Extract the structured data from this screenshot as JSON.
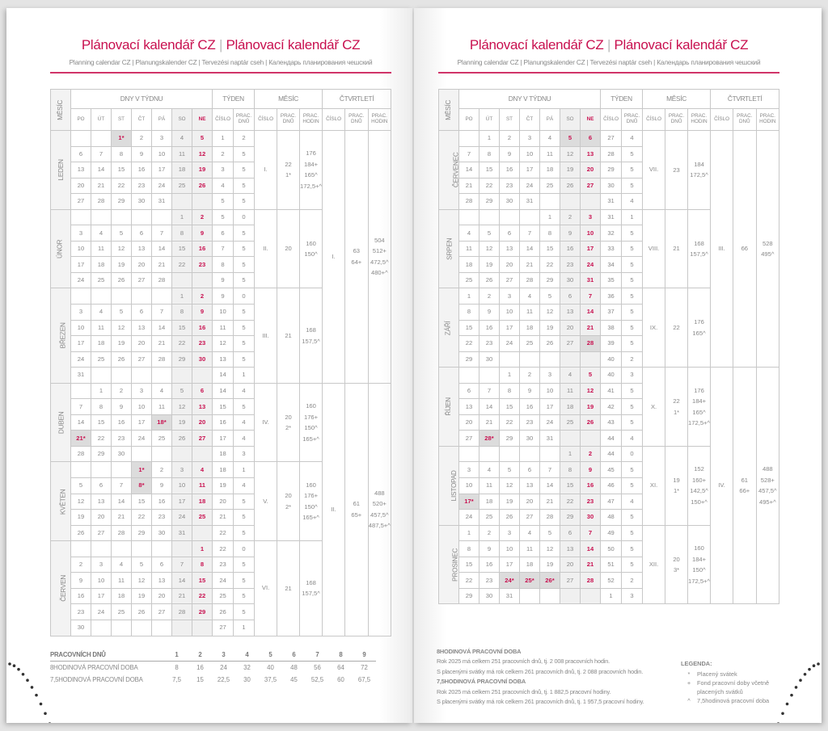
{
  "title": {
    "main": "Plánovací kalendář CZ",
    "sep": "|",
    "subtitle": "Planning calendar CZ | Planungskalender CZ | Tervezési naptár cseh | Календарь планирования чешский"
  },
  "colors": {
    "accent": "#c8104f",
    "weekend_shade": "#f0f0f0",
    "holiday_shade": "#dcdcdc",
    "text": "#888888"
  },
  "headers": {
    "month": "MĚSÍC",
    "days_group": "DNY V TÝDNU",
    "days": [
      "PO",
      "ÚT",
      "ST",
      "ČT",
      "PÁ",
      "SO",
      "NE"
    ],
    "week_group": "TÝDEN",
    "month_group": "MĚSÍC",
    "quarter_group": "ČTVRTLETÍ",
    "number": "ČÍSLO",
    "work_days": "PRAC. DNŮ",
    "work_hours": "PRAC. HODIN"
  },
  "pages": [
    {
      "quarters": [
        {
          "number": "I.",
          "days": [
            "63",
            "64+"
          ],
          "hours": [
            "504",
            "512+",
            "472,5^",
            "480+^"
          ],
          "months": [
            {
              "name": "LEDEN",
              "number": "I.",
              "days": [
                "22",
                "1*"
              ],
              "hours": [
                "176",
                "184+",
                "165^",
                "172,5+^"
              ],
              "holidays": [],
              "rows": [
                [
                  "_ _ 1* 2 3 4 5",
                  "1",
                  "2"
                ],
                [
                  "6 7 8 9 10 11 12",
                  "2",
                  "5"
                ],
                [
                  "13 14 15 16 17 18 19",
                  "3",
                  "5"
                ],
                [
                  "20 21 22 23 24 25 26",
                  "4",
                  "5"
                ],
                [
                  "27 28 29 30 31 _ _",
                  "5",
                  "5"
                ]
              ]
            },
            {
              "name": "ÚNOR",
              "number": "II.",
              "days": [
                "20"
              ],
              "hours": [
                "160",
                "150^"
              ],
              "holidays": [],
              "rows": [
                [
                  "_ _ _ _ _ 1 2",
                  "5",
                  "0"
                ],
                [
                  "3 4 5 6 7 8 9",
                  "6",
                  "5"
                ],
                [
                  "10 11 12 13 14 15 16",
                  "7",
                  "5"
                ],
                [
                  "17 18 19 20 21 22 23",
                  "8",
                  "5"
                ],
                [
                  "24 25 26 27 28 _ _",
                  "9",
                  "5"
                ]
              ]
            },
            {
              "name": "BŘEZEN",
              "number": "III.",
              "days": [
                "21"
              ],
              "hours": [
                "168",
                "157,5^"
              ],
              "holidays": [],
              "rows": [
                [
                  "_ _ _ _ _ 1 2",
                  "9",
                  "0"
                ],
                [
                  "3 4 5 6 7 8 9",
                  "10",
                  "5"
                ],
                [
                  "10 11 12 13 14 15 16",
                  "11",
                  "5"
                ],
                [
                  "17 18 19 20 21 22 23",
                  "12",
                  "5"
                ],
                [
                  "24 25 26 27 28 29 30",
                  "13",
                  "5"
                ],
                [
                  "31 _ _ _ _ _ _",
                  "14",
                  "1"
                ]
              ]
            }
          ]
        },
        {
          "number": "II.",
          "days": [
            "61",
            "65+"
          ],
          "hours": [
            "488",
            "520+",
            "457,5^",
            "487,5+^"
          ],
          "months": [
            {
              "name": "DUBEN",
              "number": "IV.",
              "days": [
                "20",
                "2*"
              ],
              "hours": [
                "160",
                "176+",
                "150^",
                "165+^"
              ],
              "holidays": [],
              "rows": [
                [
                  "_ 1 2 3 4 5 6",
                  "14",
                  "4"
                ],
                [
                  "7 8 9 10 11 12 13",
                  "15",
                  "5"
                ],
                [
                  "14 15 16 17 18* 19 20",
                  "16",
                  "4"
                ],
                [
                  "21* 22 23 24 25 26 27",
                  "17",
                  "4"
                ],
                [
                  "28 29 30 _ _ _ _",
                  "18",
                  "3"
                ]
              ]
            },
            {
              "name": "KVĚTEN",
              "number": "V.",
              "days": [
                "20",
                "2*"
              ],
              "hours": [
                "160",
                "176+",
                "150^",
                "165+^"
              ],
              "holidays": [],
              "rows": [
                [
                  "_ _ _ 1* 2 3 4",
                  "18",
                  "1"
                ],
                [
                  "5 6 7 8* 9 10 11",
                  "19",
                  "4"
                ],
                [
                  "12 13 14 15 16 17 18",
                  "20",
                  "5"
                ],
                [
                  "19 20 21 22 23 24 25",
                  "21",
                  "5"
                ],
                [
                  "26 27 28 29 30 31 _",
                  "22",
                  "5"
                ]
              ]
            },
            {
              "name": "ČERVEN",
              "number": "VI.",
              "days": [
                "21"
              ],
              "hours": [
                "168",
                "157,5^"
              ],
              "holidays": [],
              "rows": [
                [
                  "_ _ _ _ _ _ 1",
                  "22",
                  "0"
                ],
                [
                  "2 3 4 5 6 7 8",
                  "23",
                  "5"
                ],
                [
                  "9 10 11 12 13 14 15",
                  "24",
                  "5"
                ],
                [
                  "16 17 18 19 20 21 22",
                  "25",
                  "5"
                ],
                [
                  "23 24 25 26 27 28 29",
                  "26",
                  "5"
                ],
                [
                  "30 _ _ _ _ _ _",
                  "27",
                  "1"
                ]
              ]
            }
          ]
        }
      ]
    },
    {
      "quarters": [
        {
          "number": "III.",
          "days": [
            "66"
          ],
          "hours": [
            "528",
            "495^"
          ],
          "months": [
            {
              "name": "ČERVENEC",
              "number": "VII.",
              "days": [
                "23"
              ],
              "hours": [
                "184",
                "172,5^"
              ],
              "holidays": [
                "5",
                "6"
              ],
              "rows": [
                [
                  "_ 1 2 3 4 5 6",
                  "27",
                  "4"
                ],
                [
                  "7 8 9 10 11 12 13",
                  "28",
                  "5"
                ],
                [
                  "14 15 16 17 18 19 20",
                  "29",
                  "5"
                ],
                [
                  "21 22 23 24 25 26 27",
                  "30",
                  "5"
                ],
                [
                  "28 29 30 31 _ _ _",
                  "31",
                  "4"
                ]
              ]
            },
            {
              "name": "SRPEN",
              "number": "VIII.",
              "days": [
                "21"
              ],
              "hours": [
                "168",
                "157,5^"
              ],
              "holidays": [],
              "rows": [
                [
                  "_ _ _ _ 1 2 3",
                  "31",
                  "1"
                ],
                [
                  "4 5 6 7 8 9 10",
                  "32",
                  "5"
                ],
                [
                  "11 12 13 14 15 16 17",
                  "33",
                  "5"
                ],
                [
                  "18 19 20 21 22 23 24",
                  "34",
                  "5"
                ],
                [
                  "25 26 27 28 29 30 31",
                  "35",
                  "5"
                ]
              ]
            },
            {
              "name": "ZÁŘÍ",
              "number": "IX.",
              "days": [
                "22"
              ],
              "hours": [
                "176",
                "165^"
              ],
              "holidays": [
                "28"
              ],
              "rows": [
                [
                  "1 2 3 4 5 6 7",
                  "36",
                  "5"
                ],
                [
                  "8 9 10 11 12 13 14",
                  "37",
                  "5"
                ],
                [
                  "15 16 17 18 19 20 21",
                  "38",
                  "5"
                ],
                [
                  "22 23 24 25 26 27 28",
                  "39",
                  "5"
                ],
                [
                  "29 30 _ _ _ _ _",
                  "40",
                  "2"
                ]
              ]
            }
          ]
        },
        {
          "number": "IV.",
          "days": [
            "61",
            "66+"
          ],
          "hours": [
            "488",
            "528+",
            "457,5^",
            "495+^"
          ],
          "months": [
            {
              "name": "ŘÍJEN",
              "number": "X.",
              "days": [
                "22",
                "1*"
              ],
              "hours": [
                "176",
                "184+",
                "165^",
                "172,5+^"
              ],
              "holidays": [],
              "rows": [
                [
                  "_ _ 1 2 3 4 5",
                  "40",
                  "3"
                ],
                [
                  "6 7 8 9 10 11 12",
                  "41",
                  "5"
                ],
                [
                  "13 14 15 16 17 18 19",
                  "42",
                  "5"
                ],
                [
                  "20 21 22 23 24 25 26",
                  "43",
                  "5"
                ],
                [
                  "27 28* 29 30 31 _ _",
                  "44",
                  "4"
                ]
              ]
            },
            {
              "name": "LISTOPAD",
              "number": "XI.",
              "days": [
                "19",
                "1*"
              ],
              "hours": [
                "152",
                "160+",
                "142,5^",
                "150+^"
              ],
              "holidays": [],
              "rows": [
                [
                  "_ _ _ _ _ 1 2",
                  "44",
                  "0"
                ],
                [
                  "3 4 5 6 7 8 9",
                  "45",
                  "5"
                ],
                [
                  "10 11 12 13 14 15 16",
                  "46",
                  "5"
                ],
                [
                  "17* 18 19 20 21 22 23",
                  "47",
                  "4"
                ],
                [
                  "24 25 26 27 28 29 30",
                  "48",
                  "5"
                ]
              ]
            },
            {
              "name": "PROSINEC",
              "number": "XII.",
              "days": [
                "20",
                "3*"
              ],
              "hours": [
                "160",
                "184+",
                "150^",
                "172,5+^"
              ],
              "holidays": [],
              "rows": [
                [
                  "1 2 3 4 5 6 7",
                  "49",
                  "5"
                ],
                [
                  "8 9 10 11 12 13 14",
                  "50",
                  "5"
                ],
                [
                  "15 16 17 18 19 20 21",
                  "51",
                  "5"
                ],
                [
                  "22 23 24* 25* 26* 27 28",
                  "52",
                  "2"
                ],
                [
                  "29 30 31 _ _ _ _",
                  "1",
                  "3"
                ]
              ]
            }
          ]
        }
      ]
    }
  ],
  "footer_table": {
    "header": "PRACOVNÍCH DNŮ",
    "cols": [
      "1",
      "2",
      "3",
      "4",
      "5",
      "6",
      "7",
      "8",
      "9"
    ],
    "rows": [
      {
        "label": "8HODINOVÁ PRACOVNÍ DOBA",
        "values": [
          "8",
          "16",
          "24",
          "32",
          "40",
          "48",
          "56",
          "64",
          "72"
        ]
      },
      {
        "label": "7,5HODINOVÁ PRACOVNÍ DOBA",
        "values": [
          "7,5",
          "15",
          "22,5",
          "30",
          "37,5",
          "45",
          "52,5",
          "60",
          "67,5"
        ]
      }
    ]
  },
  "notes": {
    "h8": "8HODINOVÁ PRACOVNÍ DOBA",
    "h8_l1": "Rok 2025 má celkem 251 pracovních dnů, tj. 2 008 pracovních hodin.",
    "h8_l2": "S placenými svátky má rok celkem 261 pracovních dnů, tj. 2 088 pracovních hodin.",
    "h75": "7,5HODINOVÁ PRACOVNÍ DOBA",
    "h75_l1": "Rok 2025 má celkem 251 pracovních dnů, tj. 1 882,5 pracovní hodiny.",
    "h75_l2": "S placenými svátky má rok celkem 261 pracovních dnů, tj. 1 957,5 pracovní hodiny."
  },
  "legend": {
    "title": "LEGENDA:",
    "items": [
      {
        "symbol": "*",
        "text": "Placený svátek"
      },
      {
        "symbol": "+",
        "text": "Fond pracovní doby včetně placených svátků"
      },
      {
        "symbol": "^",
        "text": "7,5hodinová pracovní doba"
      }
    ]
  }
}
